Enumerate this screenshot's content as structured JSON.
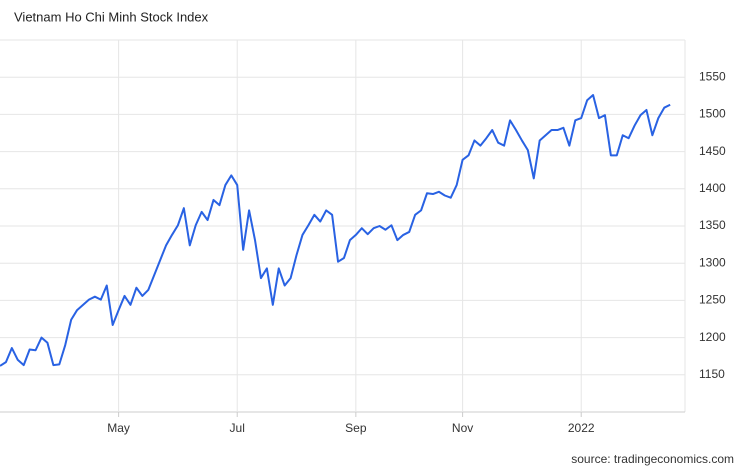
{
  "chart_data": {
    "type": "line",
    "title": "Vietnam Ho Chi Minh Stock Index",
    "source": "source: tradingeconomics.com",
    "series": [
      {
        "name": "Vietnam Ho Chi Minh Stock Index",
        "color": "#2962e3",
        "values": [
          1162,
          1167,
          1186,
          1170,
          1163,
          1184,
          1183,
          1200,
          1193,
          1163,
          1164,
          1190,
          1224,
          1237,
          1244,
          1251,
          1255,
          1251,
          1270,
          1217,
          1237,
          1256,
          1244,
          1267,
          1256,
          1264,
          1284,
          1304,
          1324,
          1338,
          1351,
          1374,
          1324,
          1351,
          1369,
          1358,
          1385,
          1378,
          1405,
          1418,
          1405,
          1318,
          1371,
          1331,
          1280,
          1293,
          1244,
          1293,
          1270,
          1280,
          1311,
          1338,
          1351,
          1365,
          1356,
          1371,
          1365,
          1302,
          1307,
          1331,
          1338,
          1347,
          1339,
          1347,
          1350,
          1345,
          1351,
          1331,
          1338,
          1342,
          1365,
          1371,
          1394,
          1393,
          1396,
          1391,
          1388,
          1405,
          1439,
          1445,
          1465,
          1458,
          1468,
          1479,
          1462,
          1458,
          1492,
          1479,
          1465,
          1452,
          1414,
          1465,
          1472,
          1479,
          1479,
          1482,
          1458,
          1492,
          1495,
          1519,
          1526,
          1495,
          1499,
          1445,
          1445,
          1472,
          1468,
          1485,
          1499,
          1506,
          1472,
          1495,
          1509,
          1513
        ]
      }
    ],
    "xlim": [
      0,
      115.5
    ],
    "xticks": [
      {
        "value": 20,
        "label": "May"
      },
      {
        "value": 40,
        "label": "Jul"
      },
      {
        "value": 60,
        "label": "Sep"
      },
      {
        "value": 78,
        "label": "Nov"
      },
      {
        "value": 98,
        "label": "2022"
      }
    ],
    "ylim": [
      1100,
      1600
    ],
    "yticks": [
      1150,
      1200,
      1250,
      1300,
      1350,
      1400,
      1450,
      1500,
      1550
    ],
    "grid": true
  }
}
